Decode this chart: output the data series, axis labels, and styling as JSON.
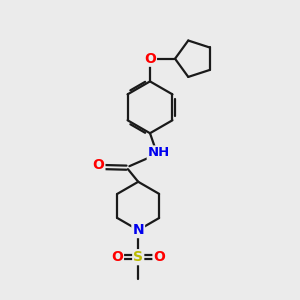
{
  "background_color": "#ebebeb",
  "bond_color": "#1a1a1a",
  "atom_colors": {
    "O": "#ff0000",
    "N": "#0000ee",
    "S": "#bbbb00",
    "C": "#1a1a1a",
    "H": "#1a1a1a"
  },
  "figsize": [
    3.0,
    3.0
  ],
  "dpi": 100,
  "lw": 1.6
}
